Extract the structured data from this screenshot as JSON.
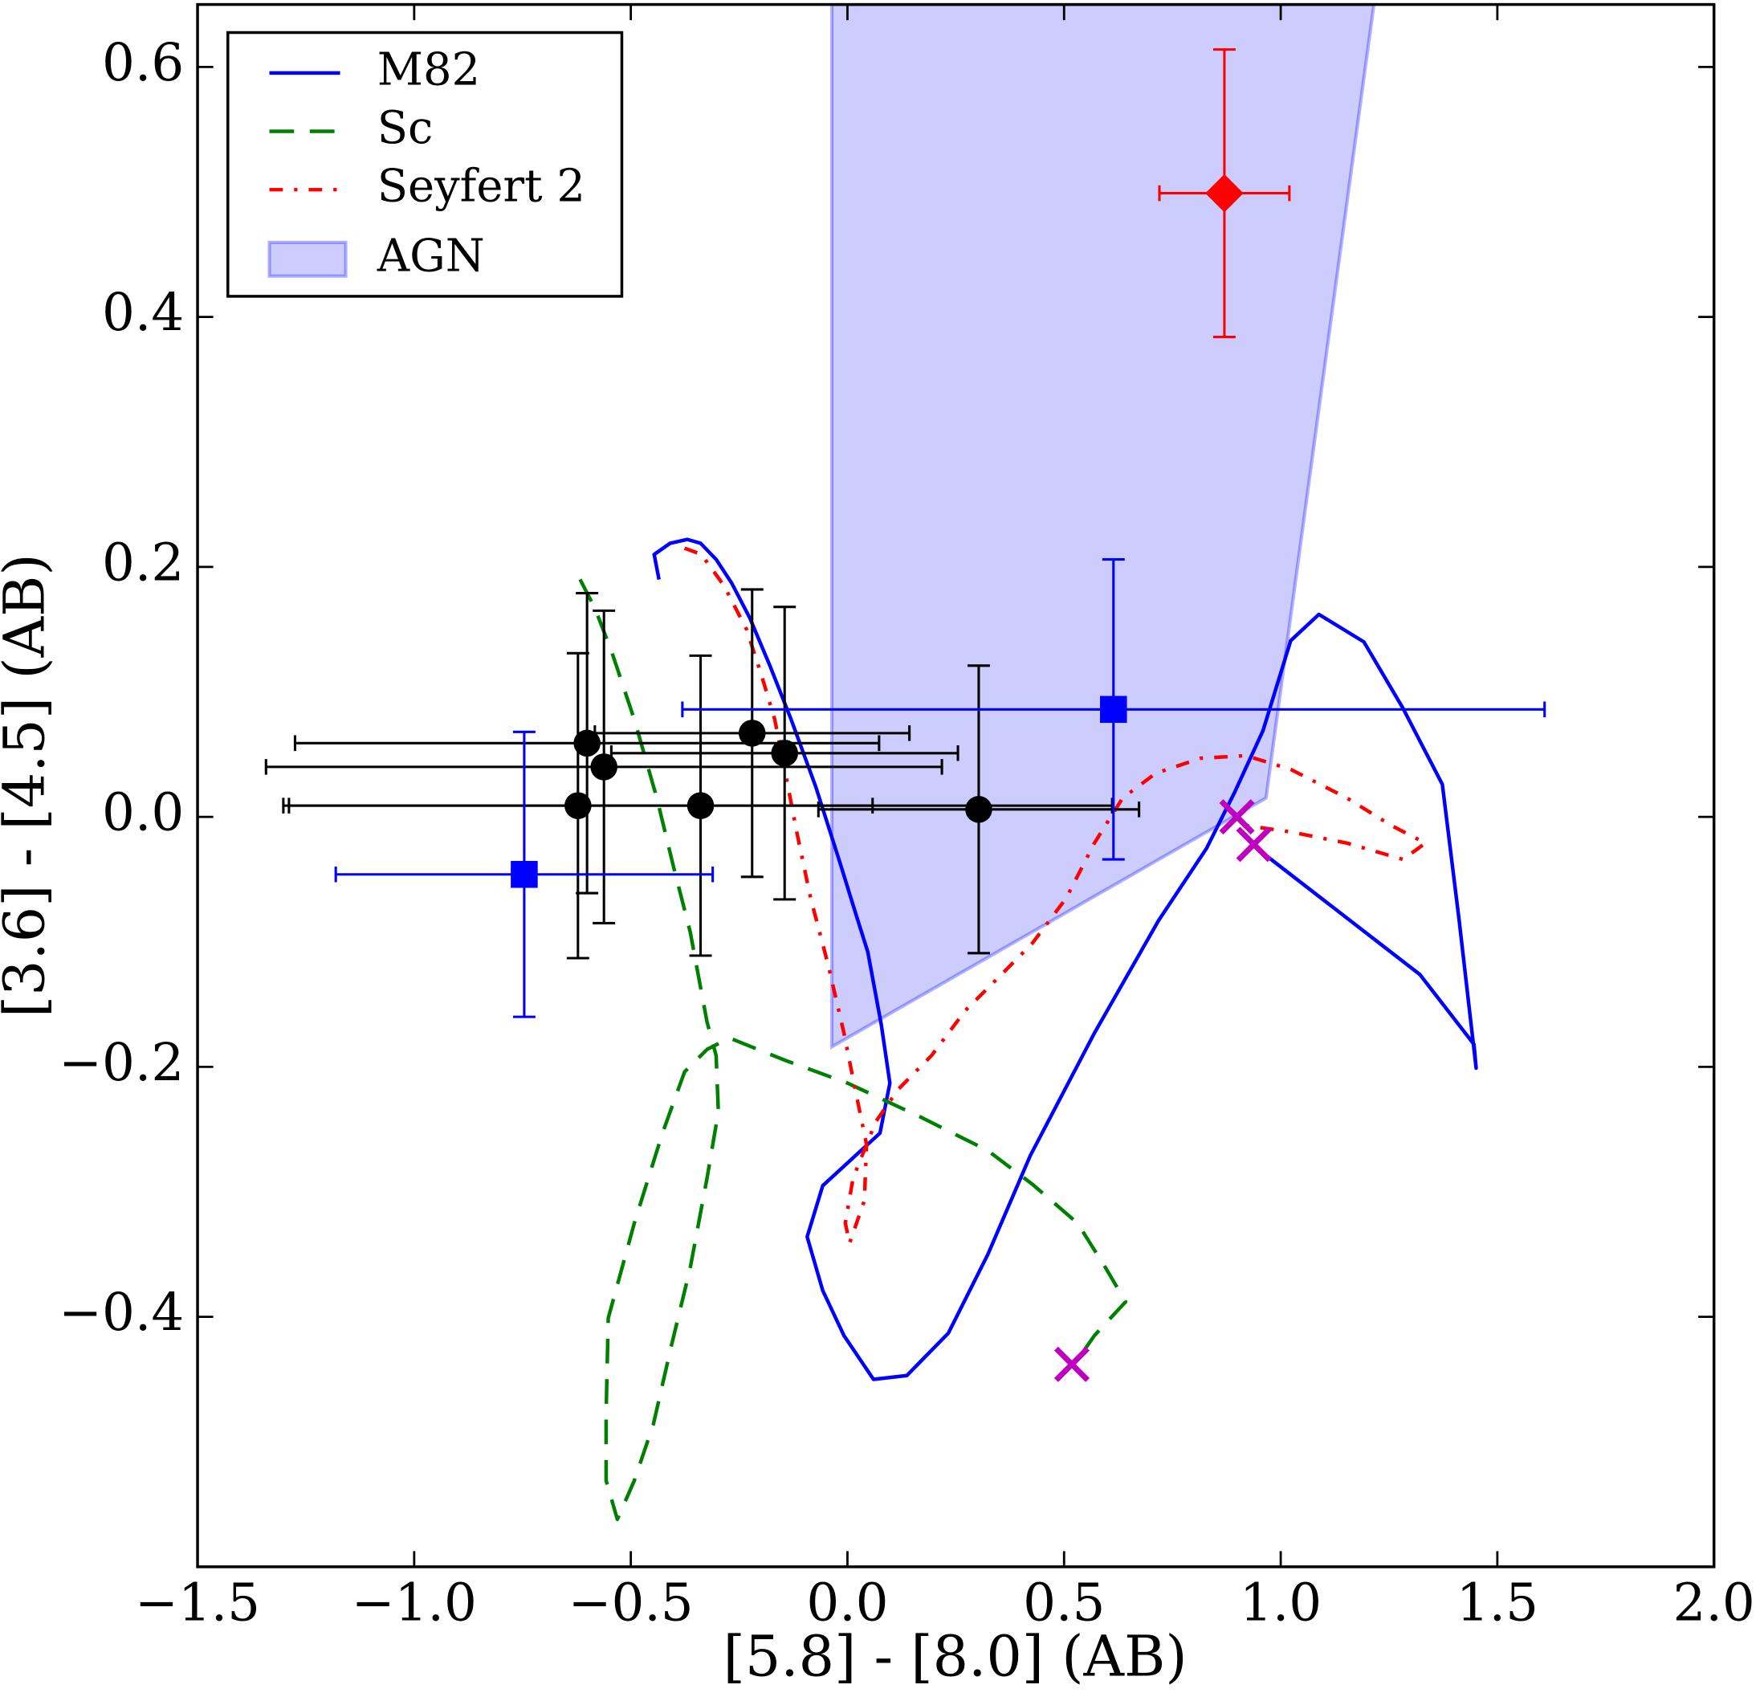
{
  "chart_data": {
    "type": "scatter",
    "xlabel": "[5.8] - [8.0] (AB)",
    "ylabel": "[3.6] - [4.5] (AB)",
    "xlim": [
      -1.5,
      2.0
    ],
    "ylim": [
      -0.6,
      0.65
    ],
    "xticks": [
      {
        "value": -1.5,
        "label": "−1.5"
      },
      {
        "value": -1.0,
        "label": "−1.0"
      },
      {
        "value": -0.5,
        "label": "−0.5"
      },
      {
        "value": 0,
        "label": "0.0"
      },
      0.5,
      {
        "value": 1.0,
        "label": "1.0"
      },
      1.5,
      {
        "value": 2.0,
        "label": "2.0"
      }
    ],
    "yticks": [
      {
        "value": -0.4,
        "label": "−0.4"
      },
      {
        "value": -0.2,
        "label": "−0.2"
      },
      {
        "value": 0,
        "label": "0.0"
      },
      0.2,
      0.4,
      0.6
    ],
    "legend": "upper left",
    "series": [
      {
        "name": "M82",
        "color": "#0000ff",
        "linestyle": "-",
        "x": [
          -0.435,
          -0.446,
          -0.409,
          -0.37,
          -0.339,
          -0.303,
          -0.267,
          -0.225,
          -0.179,
          -0.13,
          -0.073,
          -0.018,
          0.018,
          0.047,
          0.078,
          0.098,
          0.075,
          -0.057,
          -0.093,
          -0.057,
          -0.008,
          0.06,
          0.137,
          0.233,
          0.324,
          0.422,
          0.57,
          0.718,
          0.829,
          0.894,
          0.959,
          1.023,
          1.088,
          1.192,
          1.282,
          1.373,
          1.412,
          1.451,
          1.446,
          1.321,
          0.933
        ],
        "y": [
          0.19,
          0.21,
          0.219,
          0.222,
          0.219,
          0.206,
          0.187,
          0.159,
          0.121,
          0.078,
          0.024,
          -0.036,
          -0.076,
          -0.108,
          -0.166,
          -0.213,
          -0.253,
          -0.295,
          -0.336,
          -0.379,
          -0.415,
          -0.45,
          -0.447,
          -0.413,
          -0.35,
          -0.271,
          -0.173,
          -0.083,
          -0.025,
          0.02,
          0.069,
          0.141,
          0.162,
          0.14,
          0.087,
          0.026,
          -0.083,
          -0.201,
          -0.182,
          -0.126,
          -0.022
        ]
      },
      {
        "name": "Sc",
        "color": "#008000",
        "linestyle": "--",
        "x": [
          -0.617,
          -0.583,
          -0.544,
          -0.492,
          -0.44,
          -0.402,
          -0.363,
          -0.324,
          -0.303,
          -0.298,
          -0.324,
          -0.363,
          -0.407,
          -0.448,
          -0.492,
          -0.531,
          -0.557,
          -0.557,
          -0.552,
          -0.492,
          -0.427,
          -0.376,
          -0.324,
          -0.272,
          -0.142,
          0,
          0.168,
          0.324,
          0.427,
          0.531,
          0.596,
          0.642,
          0.57,
          0.526
        ],
        "y": [
          0.19,
          0.167,
          0.132,
          0.078,
          0.015,
          -0.039,
          -0.092,
          -0.164,
          -0.191,
          -0.236,
          -0.289,
          -0.361,
          -0.424,
          -0.486,
          -0.531,
          -0.562,
          -0.531,
          -0.477,
          -0.401,
          -0.325,
          -0.253,
          -0.204,
          -0.186,
          -0.177,
          -0.195,
          -0.213,
          -0.24,
          -0.267,
          -0.294,
          -0.325,
          -0.361,
          -0.388,
          -0.415,
          -0.437
        ]
      },
      {
        "name": "Seyfert 2",
        "color": "#ff0000",
        "linestyle": "-.",
        "x": [
          -0.376,
          -0.337,
          -0.285,
          -0.233,
          -0.199,
          -0.168,
          -0.142,
          -0.117,
          -0.085,
          -0.044,
          -0.008,
          0.018,
          0.044,
          0.039,
          0.005,
          -0.005,
          0.013,
          0.065,
          0.117,
          0.194,
          0.272,
          0.35,
          0.427,
          0.505,
          0.57,
          0.635,
          0.712,
          0.816,
          0.92,
          1.023,
          1.153,
          1.256,
          1.334,
          1.282,
          1.153,
          1.023,
          0.92
        ],
        "y": [
          0.215,
          0.21,
          0.185,
          0.15,
          0.114,
          0.078,
          0.033,
          -0.012,
          -0.065,
          -0.119,
          -0.173,
          -0.218,
          -0.262,
          -0.307,
          -0.341,
          -0.325,
          -0.289,
          -0.244,
          -0.218,
          -0.191,
          -0.155,
          -0.128,
          -0.101,
          -0.065,
          -0.021,
          0.015,
          0.035,
          0.047,
          0.049,
          0.038,
          0.015,
          -0.007,
          -0.021,
          -0.034,
          -0.021,
          -0.012,
          -0.007
        ]
      }
    ],
    "area": {
      "name": "AGN",
      "color": "#0000ff",
      "x": [
        -0.036,
        1.215,
        0.966,
        0.855,
        -0.036
      ],
      "y": [
        0.65,
        0.65,
        0.015,
        -0.007,
        -0.184
      ]
    },
    "points": [
      {
        "marker": "circle",
        "color": "#000000",
        "x": [
          -0.622,
          -0.601,
          -0.562,
          -0.339,
          -0.22,
          -0.145,
          0.303
        ],
        "y": [
          0.009,
          0.059,
          0.04,
          0.009,
          0.067,
          0.051,
          0.006
        ],
        "xerr": [
          0.68,
          0.674,
          0.78,
          0.95,
          0.363,
          0.4,
          0.37
        ],
        "yerr": [
          0.122,
          0.12,
          0.125,
          0.12,
          0.115,
          0.117,
          0.115
        ]
      },
      {
        "marker": "square",
        "color": "#0000ff",
        "x": [
          -0.746,
          0.614
        ],
        "y": [
          -0.046,
          0.086
        ],
        "xerr": [
          0.435,
          0.995
        ],
        "yerr": [
          0.114,
          0.12
        ]
      },
      {
        "marker": "diamond",
        "color": "#ff0000",
        "x": [
          0.87
        ],
        "y": [
          0.499
        ],
        "xerr": [
          0.15
        ],
        "yerr": [
          0.115
        ]
      },
      {
        "marker": "cross",
        "color": "#bf00bf",
        "x": [
          0.899,
          0.938,
          0.518
        ],
        "y": [
          0.0,
          -0.022,
          -0.438
        ]
      }
    ]
  }
}
